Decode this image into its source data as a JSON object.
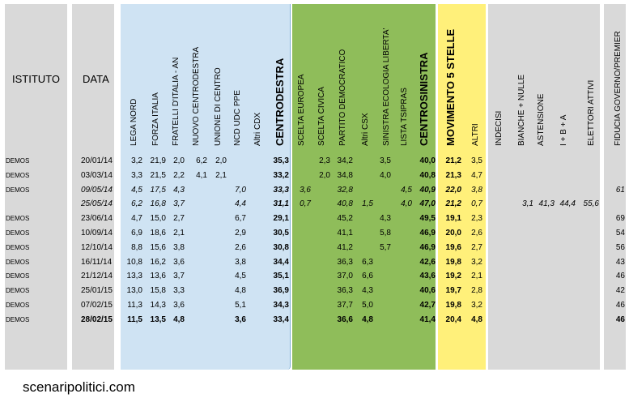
{
  "headers": {
    "istituto": "ISTITUTO",
    "data": "DATA"
  },
  "groups": {
    "centrodestra": {
      "color": "#cfe3f3",
      "columns": [
        "LEGA NORD",
        "FORZA ITALIA",
        "FRATELLI D'ITALIA - AN",
        "NUOVO CENTRODESTRA",
        "UNIONE DI CENTRO",
        "NCD UDC PPE",
        "Altri CDX",
        "CENTRODESTRA"
      ]
    },
    "centrosinistra": {
      "color": "#8fbd5a",
      "columns": [
        "SCELTA EUROPEA",
        "SCELTA CIVICA",
        "PARTITO DEMOCRATICO",
        "Altri CSX",
        "SINISTRA ECOLOGIA LIBERTA'",
        "LISTA TSIPRAS",
        "CENTROSINISTRA"
      ]
    },
    "m5s": {
      "color": "#fff07a",
      "columns": [
        "MOVIMENTO 5 STELLE",
        "ALTRI"
      ]
    },
    "other": {
      "color": "#d9d9d9",
      "columns": [
        "INDECISI",
        "BIANCHE + NULLE",
        "ASTENSIONE",
        "I + B + A",
        "ELETTORI ATTIVI"
      ]
    },
    "fiducia": {
      "color": "#d9d9d9",
      "columns": [
        "FIDUCIA GOVERNO/PREMIER"
      ]
    }
  },
  "chart_data": {
    "type": "table",
    "columns": [
      "ISTITUTO",
      "DATA",
      "LEGA NORD",
      "FORZA ITALIA",
      "FRATELLI D'ITALIA - AN",
      "NUOVO CENTRODESTRA",
      "UNIONE DI CENTRO",
      "NCD UDC PPE",
      "Altri CDX",
      "CENTRODESTRA",
      "SCELTA EUROPEA",
      "SCELTA CIVICA",
      "PARTITO DEMOCRATICO",
      "Altri CSX",
      "SINISTRA ECOLOGIA LIBERTA'",
      "LISTA TSIPRAS",
      "CENTROSINISTRA",
      "MOVIMENTO 5 STELLE",
      "ALTRI",
      "INDECISI",
      "BIANCHE + NULLE",
      "ASTENSIONE",
      "I + B + A",
      "ELETTORI ATTIVI",
      "FIDUCIA GOVERNO/PREMIER"
    ],
    "rows": [
      {
        "style": "normal",
        "istituto": "DEMOS",
        "data": "20/01/14",
        "values": [
          "3,2",
          "21,9",
          "2,0",
          "6,2",
          "2,0",
          "",
          "",
          "35,3",
          "",
          "2,3",
          "34,2",
          "",
          "3,5",
          "",
          "40,0",
          "21,2",
          "3,5",
          "",
          "",
          "",
          "",
          "",
          ""
        ]
      },
      {
        "style": "normal",
        "istituto": "DEMOS",
        "data": "03/03/14",
        "values": [
          "3,3",
          "21,5",
          "2,2",
          "4,1",
          "2,1",
          "",
          "",
          "33,2",
          "",
          "2,0",
          "34,8",
          "",
          "4,0",
          "",
          "40,8",
          "21,3",
          "4,7",
          "",
          "",
          "",
          "",
          "",
          ""
        ]
      },
      {
        "style": "italic",
        "istituto": "DEMOS",
        "data": "09/05/14",
        "values": [
          "4,5",
          "17,5",
          "4,3",
          "",
          "",
          "7,0",
          "",
          "33,3",
          "3,6",
          "",
          "32,8",
          "",
          "",
          "4,5",
          "40,9",
          "22,0",
          "3,8",
          "",
          "",
          "",
          "",
          "",
          "61"
        ]
      },
      {
        "style": "italic",
        "istituto": "",
        "data": "25/05/14",
        "values": [
          "6,2",
          "16,8",
          "3,7",
          "",
          "",
          "4,4",
          "",
          "31,1",
          "0,7",
          "",
          "40,8",
          "1,5",
          "",
          "4,0",
          "47,0",
          "21,2",
          "0,7",
          "",
          "3,1",
          "41,3",
          "44,4",
          "55,6",
          ""
        ]
      },
      {
        "style": "normal",
        "istituto": "DEMOS",
        "data": "23/06/14",
        "values": [
          "4,7",
          "15,0",
          "2,7",
          "",
          "",
          "6,7",
          "",
          "29,1",
          "",
          "",
          "45,2",
          "",
          "4,3",
          "",
          "49,5",
          "19,1",
          "2,3",
          "",
          "",
          "",
          "",
          "",
          "69"
        ]
      },
      {
        "style": "normal",
        "istituto": "DEMOS",
        "data": "10/09/14",
        "values": [
          "6,9",
          "18,6",
          "2,1",
          "",
          "",
          "2,9",
          "",
          "30,5",
          "",
          "",
          "41,1",
          "",
          "5,8",
          "",
          "46,9",
          "20,0",
          "2,6",
          "",
          "",
          "",
          "",
          "",
          "54"
        ]
      },
      {
        "style": "normal",
        "istituto": "DEMOS",
        "data": "12/10/14",
        "values": [
          "8,8",
          "15,6",
          "3,8",
          "",
          "",
          "2,6",
          "",
          "30,8",
          "",
          "",
          "41,2",
          "",
          "5,7",
          "",
          "46,9",
          "19,6",
          "2,7",
          "",
          "",
          "",
          "",
          "",
          "56"
        ]
      },
      {
        "style": "normal",
        "istituto": "DEMOS",
        "data": "16/11/14",
        "values": [
          "10,8",
          "16,2",
          "3,6",
          "",
          "",
          "3,8",
          "",
          "34,4",
          "",
          "",
          "36,3",
          "6,3",
          "",
          "",
          "42,6",
          "19,8",
          "3,2",
          "",
          "",
          "",
          "",
          "",
          "43"
        ]
      },
      {
        "style": "normal",
        "istituto": "DEMOS",
        "data": "21/12/14",
        "values": [
          "13,3",
          "13,6",
          "3,7",
          "",
          "",
          "4,5",
          "",
          "35,1",
          "",
          "",
          "37,0",
          "6,6",
          "",
          "",
          "43,6",
          "19,2",
          "2,1",
          "",
          "",
          "",
          "",
          "",
          "46"
        ]
      },
      {
        "style": "normal",
        "istituto": "DEMOS",
        "data": "25/01/15",
        "values": [
          "13,0",
          "15,8",
          "3,3",
          "",
          "",
          "4,8",
          "",
          "36,9",
          "",
          "",
          "36,3",
          "4,3",
          "",
          "",
          "40,6",
          "19,7",
          "2,8",
          "",
          "",
          "",
          "",
          "",
          "42"
        ]
      },
      {
        "style": "normal",
        "istituto": "DEMOS",
        "data": "07/02/15",
        "values": [
          "11,3",
          "14,3",
          "3,6",
          "",
          "",
          "5,1",
          "",
          "34,3",
          "",
          "",
          "37,7",
          "5,0",
          "",
          "",
          "42,7",
          "19,8",
          "3,2",
          "",
          "",
          "",
          "",
          "",
          "46"
        ]
      },
      {
        "style": "bold",
        "istituto": "DEMOS",
        "data": "28/02/15",
        "values": [
          "11,5",
          "13,5",
          "4,8",
          "",
          "",
          "3,6",
          "",
          "33,4",
          "",
          "",
          "36,6",
          "4,8",
          "",
          "",
          "41,4",
          "20,4",
          "4,8",
          "",
          "",
          "",
          "",
          "",
          "46"
        ]
      }
    ]
  },
  "footer": "scenaripolitici.com"
}
